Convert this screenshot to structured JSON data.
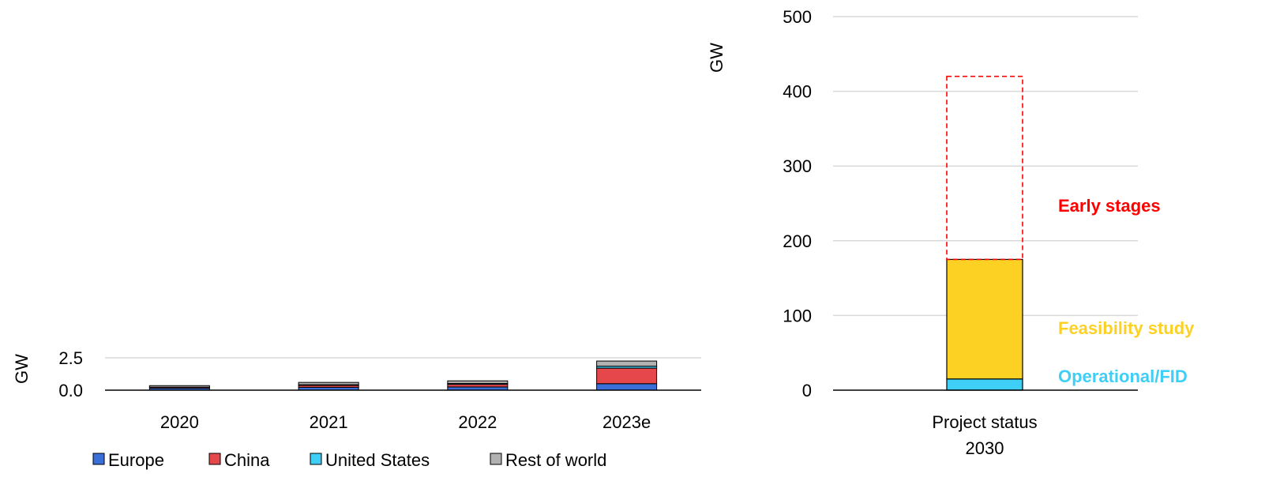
{
  "colors": {
    "europe": "#3a6fd8",
    "china": "#e5474b",
    "united_states": "#3fcef5",
    "rest_of_world": "#b1b1b1",
    "feasibility": "#fcd124",
    "early_stages_outline": "#ff0000",
    "early_stages_label": "#ff0000",
    "feasibility_label": "#fcd124",
    "operational_label": "#3fcef5",
    "gridline": "#d9d9d9",
    "axis": "#000000"
  },
  "chart_data": [
    {
      "type": "bar",
      "stacked": true,
      "categories": [
        "2020",
        "2021",
        "2022",
        "2023e"
      ],
      "series": [
        {
          "name": "Europe",
          "values": [
            0.15,
            0.22,
            0.25,
            0.5
          ],
          "color": "#3a6fd8"
        },
        {
          "name": "China",
          "values": [
            0.08,
            0.15,
            0.2,
            1.2
          ],
          "color": "#e5474b"
        },
        {
          "name": "United States",
          "values": [
            0.0,
            0.05,
            0.07,
            0.15
          ],
          "color": "#3fcef5"
        },
        {
          "name": "Rest of world",
          "values": [
            0.12,
            0.18,
            0.2,
            0.4
          ],
          "color": "#b1b1b1"
        }
      ],
      "ylabel": "GW",
      "ylim": [
        0,
        2.5
      ],
      "yticks": [
        "0.0",
        "2.5"
      ],
      "grid": true,
      "legend": "bottom"
    },
    {
      "type": "bar",
      "stacked": true,
      "categories": [
        "Project status 2030"
      ],
      "category_lines": [
        "Project status",
        "2030"
      ],
      "series": [
        {
          "name": "Operational/FID",
          "values": [
            15
          ],
          "color": "#3fcef5"
        },
        {
          "name": "Feasibility study",
          "values": [
            160
          ],
          "color": "#fcd124"
        },
        {
          "name": "Early stages",
          "values": [
            245
          ],
          "color": "#ff0000",
          "style": "dashed-outline"
        }
      ],
      "ylabel": "GW",
      "ylim": [
        0,
        500
      ],
      "yticks": [
        "0",
        "100",
        "200",
        "300",
        "400",
        "500"
      ],
      "grid": true,
      "annotations": [
        "Early stages",
        "Feasibility study",
        "Operational/FID"
      ]
    }
  ]
}
